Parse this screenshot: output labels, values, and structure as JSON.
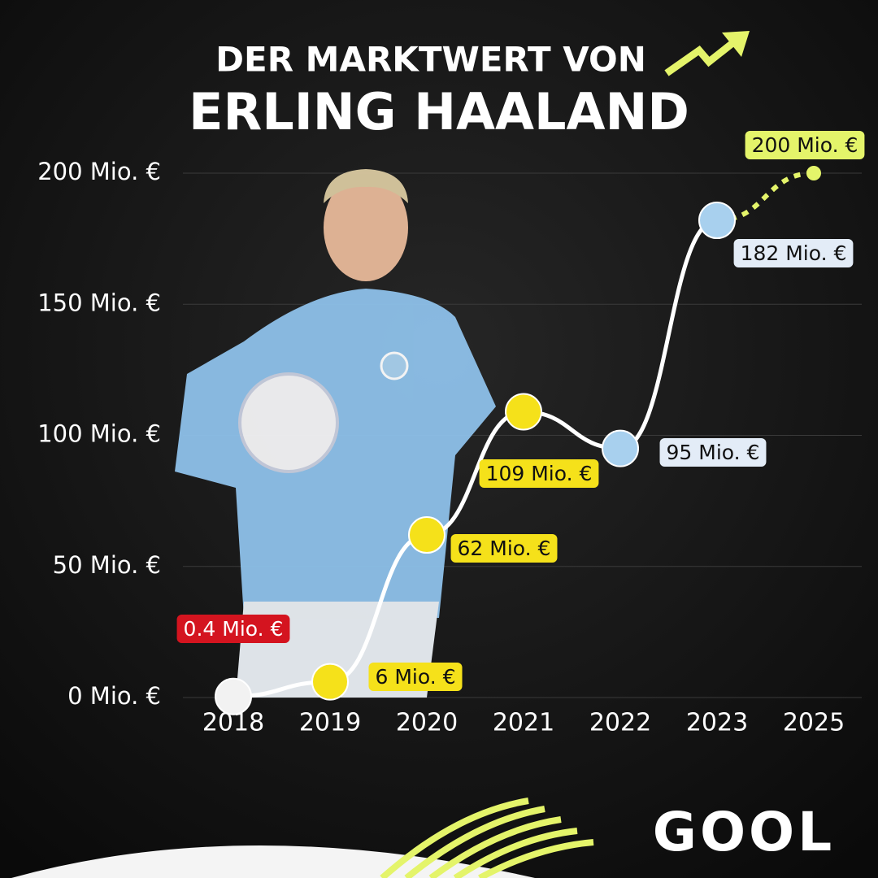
{
  "brand": "GOOL",
  "chart_data": {
    "type": "line",
    "title": "DER MARKTWERT VON",
    "subtitle": "ERLING HAALAND",
    "categories": [
      "2018",
      "2019",
      "2020",
      "2021",
      "2022",
      "2023",
      "2025"
    ],
    "series": [
      {
        "color": "#ffffff",
        "values": [
          0.4,
          6,
          62,
          109,
          95,
          182,
          200
        ],
        "value_labels": [
          "0.4 Mio. €",
          "6 Mio. €",
          "62 Mio. €",
          "109 Mio. €",
          "95 Mio. €",
          "182 Mio. €",
          "200 Mio. €"
        ],
        "point_colors": [
          "#f2f2f2",
          "#f5e11a",
          "#f5e11a",
          "#f5e11a",
          "#a8d0ee",
          "#a8d0ee",
          "#e4f46a"
        ],
        "label_colors": [
          "#d4141f",
          "#f5e11a",
          "#f5e11a",
          "#f5e11a",
          "#e3ecf7",
          "#e3ecf7",
          "#e4f46a"
        ],
        "dashed_from": 5,
        "dashed_color": "#e4f46a"
      }
    ],
    "ylim": [
      0,
      200
    ],
    "yticks": [
      {
        "value": 0,
        "label": "0 Mio. €"
      },
      {
        "value": 50,
        "label": "50 Mio. €"
      },
      {
        "value": 100,
        "label": "100 Mio. €"
      },
      {
        "value": 150,
        "label": "150 Mio. €"
      },
      {
        "value": 200,
        "label": "200 Mio. €"
      }
    ],
    "grid": true
  }
}
